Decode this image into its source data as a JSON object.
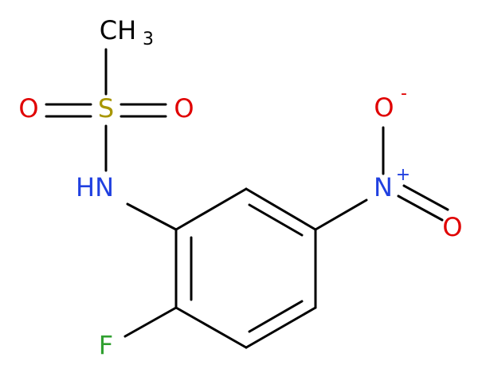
{
  "atoms": [
    {
      "label": "CH",
      "subscript": "3"
    },
    {
      "label": "S"
    },
    {
      "label": "O"
    },
    {
      "label": "O"
    },
    {
      "label": "HN"
    },
    {
      "label": "N",
      "charge": "+"
    },
    {
      "label": "O",
      "charge": "-"
    },
    {
      "label": "O"
    },
    {
      "label": "F"
    }
  ]
}
